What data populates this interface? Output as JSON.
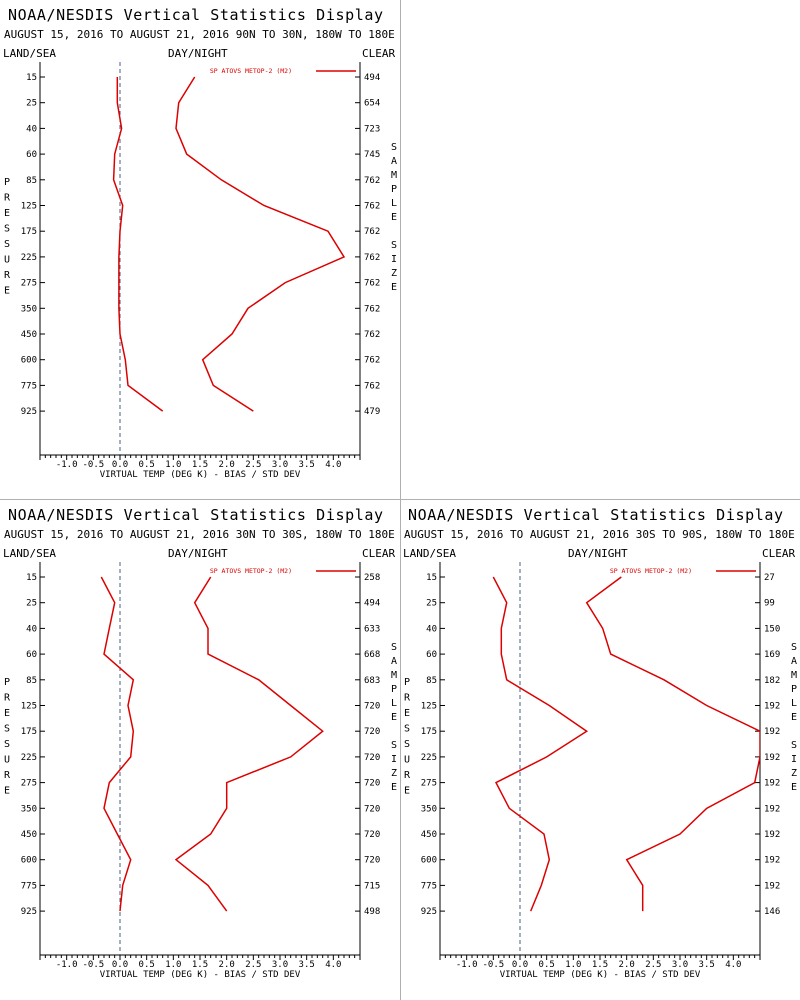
{
  "chart_data": [
    {
      "type": "line",
      "title": "NOAA/NESDIS Vertical Statistics Display",
      "subtitle": "AUGUST 15, 2016 TO AUGUST 21, 2016  90N TO 30N, 180W TO 180E",
      "header_left": "LAND/SEA",
      "header_mid": "DAY/NIGHT",
      "header_right": "CLEAR",
      "ylabel": "PRESSURE",
      "y2label": "SAMPLE SIZE",
      "xlabel": "VIRTUAL TEMP (DEG K) - BIAS / STD DEV",
      "legend": "SP ATOVS METOP-2 (M2)",
      "xlim": [
        -1.5,
        4.5
      ],
      "xticks": [
        "-1.0",
        "-0.5",
        "0.0",
        "0.5",
        "1.0",
        "1.5",
        "2.0",
        "2.5",
        "3.0",
        "3.5",
        "4.0"
      ],
      "pressure_levels": [
        "15",
        "25",
        "40",
        "60",
        "85",
        "125",
        "175",
        "225",
        "275",
        "350",
        "450",
        "600",
        "775",
        "925"
      ],
      "sample_size": [
        "494",
        "654",
        "723",
        "745",
        "762",
        "762",
        "762",
        "762",
        "762",
        "762",
        "762",
        "762",
        "762",
        "479"
      ],
      "bias": [
        -0.05,
        -0.05,
        0.03,
        -0.1,
        -0.12,
        0.05,
        0.0,
        -0.02,
        -0.02,
        -0.02,
        0.0,
        0.1,
        0.15,
        0.8
      ],
      "std_dev": [
        1.4,
        1.1,
        1.05,
        1.25,
        1.9,
        2.7,
        3.9,
        4.2,
        3.1,
        2.4,
        2.1,
        1.55,
        1.75,
        2.5
      ]
    },
    {
      "type": "line",
      "title": "NOAA/NESDIS Vertical Statistics Display",
      "subtitle": "AUGUST 15, 2016 TO AUGUST 21, 2016  30N TO 30S, 180W TO 180E",
      "header_left": "LAND/SEA",
      "header_mid": "DAY/NIGHT",
      "header_right": "CLEAR",
      "ylabel": "PRESSURE",
      "y2label": "SAMPLE SIZE",
      "xlabel": "VIRTUAL TEMP (DEG K) - BIAS / STD DEV",
      "legend": "SP ATOVS METOP-2 (M2)",
      "xlim": [
        -1.5,
        4.5
      ],
      "xticks": [
        "-1.0",
        "-0.5",
        "0.0",
        "0.5",
        "1.0",
        "1.5",
        "2.0",
        "2.5",
        "3.0",
        "3.5",
        "4.0"
      ],
      "pressure_levels": [
        "15",
        "25",
        "40",
        "60",
        "85",
        "125",
        "175",
        "225",
        "275",
        "350",
        "450",
        "600",
        "775",
        "925"
      ],
      "sample_size": [
        "258",
        "494",
        "633",
        "668",
        "683",
        "720",
        "720",
        "720",
        "720",
        "720",
        "720",
        "720",
        "715",
        "498"
      ],
      "bias": [
        -0.35,
        -0.1,
        -0.2,
        -0.3,
        0.25,
        0.15,
        0.25,
        0.2,
        -0.2,
        -0.3,
        -0.05,
        0.2,
        0.05,
        0.0
      ],
      "std_dev": [
        1.7,
        1.4,
        1.65,
        1.65,
        2.6,
        3.2,
        3.8,
        3.2,
        2.0,
        2.0,
        1.7,
        1.05,
        1.65,
        2.0
      ]
    },
    {
      "type": "line",
      "title": "NOAA/NESDIS Vertical Statistics Display",
      "subtitle": "AUGUST 15, 2016 TO AUGUST 21, 2016  30S TO 90S, 180W TO 180E",
      "header_left": "LAND/SEA",
      "header_mid": "DAY/NIGHT",
      "header_right": "CLEAR",
      "ylabel": "PRESSURE",
      "y2label": "SAMPLE SIZE",
      "xlabel": "VIRTUAL TEMP (DEG K) - BIAS / STD DEV",
      "legend": "SP ATOVS METOP-2 (M2)",
      "xlim": [
        -1.5,
        4.5
      ],
      "xticks": [
        "-1.0",
        "-0.5",
        "0.0",
        "0.5",
        "1.0",
        "1.5",
        "2.0",
        "2.5",
        "3.0",
        "3.5",
        "4.0"
      ],
      "pressure_levels": [
        "15",
        "25",
        "40",
        "60",
        "85",
        "125",
        "175",
        "225",
        "275",
        "350",
        "450",
        "600",
        "775",
        "925"
      ],
      "sample_size": [
        "27",
        "99",
        "150",
        "169",
        "182",
        "192",
        "192",
        "192",
        "192",
        "192",
        "192",
        "192",
        "192",
        "146"
      ],
      "bias": [
        -0.5,
        -0.25,
        -0.35,
        -0.35,
        -0.25,
        0.55,
        1.25,
        0.5,
        -0.45,
        -0.2,
        0.45,
        0.55,
        0.4,
        0.2
      ],
      "std_dev": [
        1.9,
        1.25,
        1.55,
        1.7,
        2.7,
        3.5,
        4.5,
        4.5,
        4.4,
        3.5,
        3.0,
        2.0,
        2.3,
        2.3
      ]
    }
  ]
}
